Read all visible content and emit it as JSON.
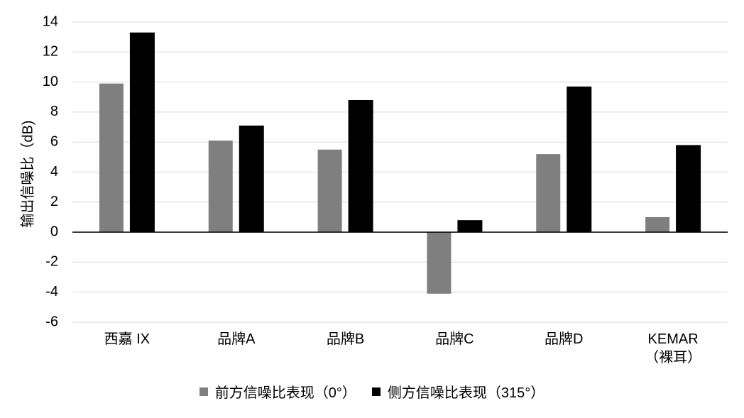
{
  "chart_data": {
    "type": "bar",
    "y_label": "输出信噪比（dB)",
    "categories": [
      "西嘉 IX",
      "品牌A",
      "品牌B",
      "品牌C",
      "品牌D",
      "KEMAR\n（裸耳）"
    ],
    "series": [
      {
        "name": "前方信噪比表现（0°）",
        "color": "#7f7f7f",
        "values": [
          9.9,
          6.1,
          5.5,
          -4.1,
          5.2,
          1.0
        ]
      },
      {
        "name": "侧方信噪比表现（315°）",
        "color": "#000000",
        "values": [
          13.3,
          7.1,
          8.8,
          0.8,
          9.7,
          5.8
        ]
      }
    ],
    "ylim": [
      -6,
      14
    ],
    "yticks": [
      -6,
      -4,
      -2,
      0,
      2,
      4,
      6,
      8,
      10,
      12,
      14
    ],
    "grid": true,
    "legend": "bottom"
  }
}
